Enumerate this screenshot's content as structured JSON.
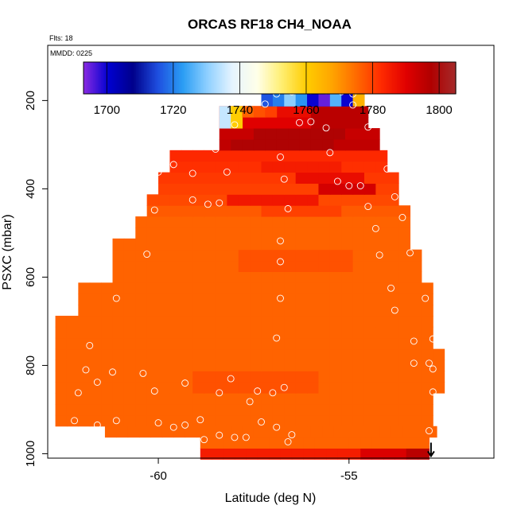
{
  "chart_data": {
    "type": "heatmap",
    "title": "ORCAS RF18 CH4_NOAA",
    "flts_label": "Flts: 18",
    "mmdd_label": "MMDD: 0225",
    "xlabel": "Latitude (deg N)",
    "ylabel": "PSXC (mbar)",
    "xlim": [
      -62.9,
      -51.2
    ],
    "ylim": [
      1010,
      75
    ],
    "y_reversed": true,
    "x_ticks": [
      {
        "value": -60,
        "label": "-60"
      },
      {
        "value": -55,
        "label": "-55"
      }
    ],
    "y_ticks": [
      {
        "value": 200,
        "label": "200"
      },
      {
        "value": 400,
        "label": "400"
      },
      {
        "value": 600,
        "label": "600"
      },
      {
        "value": 800,
        "label": "800"
      },
      {
        "value": 1000,
        "label": "1000"
      }
    ],
    "colorbar": {
      "range": [
        1693,
        1805
      ],
      "ticks": [
        {
          "value": 1700,
          "label": "1700"
        },
        {
          "value": 1720,
          "label": "1720"
        },
        {
          "value": 1740,
          "label": "1740"
        },
        {
          "value": 1760,
          "label": "1760"
        },
        {
          "value": 1780,
          "label": "1780"
        },
        {
          "value": 1800,
          "label": "1800"
        }
      ],
      "colors": [
        "#8a2be2",
        "#0000d0",
        "#00008b",
        "#1e4fe0",
        "#2a9df4",
        "#8fd0ff",
        "#e6f4ff",
        "#ffffe8",
        "#ffee70",
        "#ffcc00",
        "#ffa500",
        "#ff6a00",
        "#ff2a00",
        "#e00000",
        "#b00000",
        "#a52a2a"
      ]
    },
    "bin_width_deg": 0.3,
    "layer_height_mbar": 25,
    "rows": [
      {
        "p": 1000,
        "x0": -58.9,
        "x1": -52.9,
        "v": 1785,
        "hi_from": -55.0,
        "hi_v": 1791,
        "hi2_from": -53.8,
        "hi2_v": 1796
      },
      {
        "p": 975,
        "x0": -58.9,
        "x1": -52.9,
        "v": 1776
      },
      {
        "p": 950,
        "x0": -61.4,
        "x1": -52.9,
        "v": 1776
      },
      {
        "p": 925,
        "x0": -62.7,
        "x1": -52.9,
        "v": 1776
      },
      {
        "p": 900,
        "x0": -62.7,
        "x1": -52.9,
        "v": 1776
      },
      {
        "p": 875,
        "x0": -62.7,
        "x1": -52.9,
        "v": 1776
      },
      {
        "p": 850,
        "x0": -62.7,
        "x1": -52.6,
        "v": 1776,
        "band": [
          -59.3,
          -56.0
        ],
        "band_v": 1778
      },
      {
        "p": 825,
        "x0": -62.7,
        "x1": -52.6,
        "v": 1776,
        "band": [
          -59.3,
          -56.0
        ],
        "band_v": 1778
      },
      {
        "p": 800,
        "x0": -62.7,
        "x1": -52.6,
        "v": 1776
      },
      {
        "p": 775,
        "x0": -62.7,
        "x1": -52.6,
        "v": 1776
      },
      {
        "p": 750,
        "x0": -62.7,
        "x1": -52.9,
        "v": 1776
      },
      {
        "p": 725,
        "x0": -62.7,
        "x1": -52.9,
        "v": 1776
      },
      {
        "p": 700,
        "x0": -62.7,
        "x1": -52.9,
        "v": 1776
      },
      {
        "p": 675,
        "x0": -62.1,
        "x1": -52.9,
        "v": 1776
      },
      {
        "p": 650,
        "x0": -62.1,
        "x1": -52.9,
        "v": 1776
      },
      {
        "p": 625,
        "x0": -62.1,
        "x1": -52.9,
        "v": 1776
      },
      {
        "p": 600,
        "x0": -61.2,
        "x1": -53.2,
        "v": 1776
      },
      {
        "p": 575,
        "x0": -61.2,
        "x1": -53.2,
        "v": 1776,
        "band": [
          -58.1,
          -55.0
        ],
        "band_v": 1778
      },
      {
        "p": 550,
        "x0": -61.2,
        "x1": -53.2,
        "v": 1776,
        "band": [
          -58.1,
          -55.0
        ],
        "band_v": 1778
      },
      {
        "p": 525,
        "x0": -61.2,
        "x1": -53.5,
        "v": 1776
      },
      {
        "p": 500,
        "x0": -60.6,
        "x1": -53.5,
        "v": 1776
      },
      {
        "p": 475,
        "x0": -60.6,
        "x1": -53.5,
        "v": 1776
      },
      {
        "p": 450,
        "x0": -60.3,
        "x1": -53.5,
        "v": 1777,
        "band": [
          -57.6,
          -55.3
        ],
        "band_v": 1780
      },
      {
        "p": 425,
        "x0": -60.3,
        "x1": -53.8,
        "v": 1779,
        "band": [
          -58.4,
          -56.0
        ],
        "band_v": 1786
      },
      {
        "p": 400,
        "x0": -60.0,
        "x1": -53.8,
        "v": 1780,
        "band": [
          -56.0,
          -54.5
        ],
        "band_v": 1792
      },
      {
        "p": 375,
        "x0": -60.0,
        "x1": -53.8,
        "v": 1781,
        "band": [
          -56.6,
          -54.8
        ],
        "band_v": 1788
      },
      {
        "p": 350,
        "x0": -59.7,
        "x1": -54.1,
        "v": 1782,
        "band": [
          -57.5,
          -55.5
        ],
        "band_v": 1785
      },
      {
        "p": 325,
        "x0": -59.7,
        "x1": -54.1,
        "v": 1783
      },
      {
        "p": 300,
        "x0": -58.4,
        "x1": -54.4,
        "v": 1795,
        "band": [
          -58.1,
          -55.6
        ],
        "band_v": 1798
      },
      {
        "p": 275,
        "x0": -58.4,
        "x1": -54.4,
        "v": 1794,
        "band": [
          -57.7,
          -55.3
        ],
        "band_v": 1798
      },
      {
        "p": 250,
        "x0": -58.4,
        "x1": -54.7,
        "v": 1790,
        "band": [
          -56.3,
          -54.8
        ],
        "band_v": 1796
      },
      {
        "p": 225,
        "x0": -58.4,
        "x1": -54.7,
        "v": 1788,
        "band": [
          -56.3,
          -54.8
        ],
        "band_v": 1796
      },
      {
        "p": 200,
        "x0": -57.3,
        "x1": -54.8,
        "v": 1712
      },
      {
        "p": 175,
        "x0": -57.3,
        "x1": -54.8,
        "v": 1712
      }
    ],
    "cells": [
      {
        "lat": -58.4,
        "p": 250,
        "v": 1735
      },
      {
        "lat": -58.1,
        "p": 250,
        "v": 1760
      },
      {
        "lat": -58.4,
        "p": 225,
        "v": 1735
      },
      {
        "lat": -58.1,
        "p": 225,
        "v": 1760
      },
      {
        "lat": -57.8,
        "p": 225,
        "v": 1776
      },
      {
        "lat": -57.5,
        "p": 225,
        "v": 1778
      },
      {
        "lat": -57.2,
        "p": 225,
        "v": 1780
      },
      {
        "lat": -57.3,
        "p": 200,
        "v": 1716
      },
      {
        "lat": -57.0,
        "p": 200,
        "v": 1720
      },
      {
        "lat": -56.7,
        "p": 200,
        "v": 1730
      },
      {
        "lat": -56.4,
        "p": 200,
        "v": 1722
      },
      {
        "lat": -56.1,
        "p": 200,
        "v": 1700
      },
      {
        "lat": -55.8,
        "p": 200,
        "v": 1695
      },
      {
        "lat": -55.5,
        "p": 200,
        "v": 1726
      },
      {
        "lat": -55.2,
        "p": 200,
        "v": 1700
      },
      {
        "lat": -54.9,
        "p": 200,
        "v": 1765
      },
      {
        "lat": -57.3,
        "p": 175,
        "v": 1716
      },
      {
        "lat": -57.0,
        "p": 175,
        "v": 1720
      },
      {
        "lat": -56.7,
        "p": 175,
        "v": 1730
      },
      {
        "lat": -56.4,
        "p": 175,
        "v": 1722
      },
      {
        "lat": -56.1,
        "p": 175,
        "v": 1700
      },
      {
        "lat": -55.8,
        "p": 175,
        "v": 1695
      },
      {
        "lat": -55.5,
        "p": 175,
        "v": 1726
      },
      {
        "lat": -55.2,
        "p": 175,
        "v": 1700
      },
      {
        "lat": -54.9,
        "p": 175,
        "v": 1765
      }
    ],
    "points": [
      {
        "lat": -57.2,
        "p": 208
      },
      {
        "lat": -56.9,
        "p": 185
      },
      {
        "lat": -56.5,
        "p": 180
      },
      {
        "lat": -56.0,
        "p": 178
      },
      {
        "lat": -55.6,
        "p": 178
      },
      {
        "lat": -55.2,
        "p": 180
      },
      {
        "lat": -54.9,
        "p": 210
      },
      {
        "lat": -54.9,
        "p": 185
      },
      {
        "lat": -58.0,
        "p": 255
      },
      {
        "lat": -56.3,
        "p": 250
      },
      {
        "lat": -56.0,
        "p": 248
      },
      {
        "lat": -55.6,
        "p": 262
      },
      {
        "lat": -54.5,
        "p": 260
      },
      {
        "lat": -58.5,
        "p": 310
      },
      {
        "lat": -56.8,
        "p": 328
      },
      {
        "lat": -55.5,
        "p": 318
      },
      {
        "lat": -54.0,
        "p": 355
      },
      {
        "lat": -59.6,
        "p": 345
      },
      {
        "lat": -59.1,
        "p": 365
      },
      {
        "lat": -56.7,
        "p": 378
      },
      {
        "lat": -55.3,
        "p": 383
      },
      {
        "lat": -55.0,
        "p": 393
      },
      {
        "lat": -54.7,
        "p": 393
      },
      {
        "lat": -53.8,
        "p": 418
      },
      {
        "lat": -60.0,
        "p": 362
      },
      {
        "lat": -58.2,
        "p": 362
      },
      {
        "lat": -59.1,
        "p": 425
      },
      {
        "lat": -58.7,
        "p": 435
      },
      {
        "lat": -58.4,
        "p": 432
      },
      {
        "lat": -56.6,
        "p": 445
      },
      {
        "lat": -54.5,
        "p": 440
      },
      {
        "lat": -53.6,
        "p": 465
      },
      {
        "lat": -60.1,
        "p": 448
      },
      {
        "lat": -54.3,
        "p": 490
      },
      {
        "lat": -56.8,
        "p": 518
      },
      {
        "lat": -54.2,
        "p": 550
      },
      {
        "lat": -53.4,
        "p": 545
      },
      {
        "lat": -60.3,
        "p": 548
      },
      {
        "lat": -56.8,
        "p": 565
      },
      {
        "lat": -61.1,
        "p": 648
      },
      {
        "lat": -56.8,
        "p": 648
      },
      {
        "lat": -53.9,
        "p": 625
      },
      {
        "lat": -53.8,
        "p": 675
      },
      {
        "lat": -53.0,
        "p": 648
      },
      {
        "lat": -61.8,
        "p": 755
      },
      {
        "lat": -56.9,
        "p": 738
      },
      {
        "lat": -53.3,
        "p": 745
      },
      {
        "lat": -52.8,
        "p": 740
      },
      {
        "lat": -61.9,
        "p": 810
      },
      {
        "lat": -61.2,
        "p": 815
      },
      {
        "lat": -60.4,
        "p": 818
      },
      {
        "lat": -61.6,
        "p": 838
      },
      {
        "lat": -60.1,
        "p": 858
      },
      {
        "lat": -59.3,
        "p": 840
      },
      {
        "lat": -58.1,
        "p": 830
      },
      {
        "lat": -58.4,
        "p": 862
      },
      {
        "lat": -57.4,
        "p": 858
      },
      {
        "lat": -57.0,
        "p": 862
      },
      {
        "lat": -56.7,
        "p": 850
      },
      {
        "lat": -57.6,
        "p": 882
      },
      {
        "lat": -53.3,
        "p": 795
      },
      {
        "lat": -52.9,
        "p": 795
      },
      {
        "lat": -52.8,
        "p": 808
      },
      {
        "lat": -52.8,
        "p": 860
      },
      {
        "lat": -62.1,
        "p": 862
      },
      {
        "lat": -61.1,
        "p": 925
      },
      {
        "lat": -61.6,
        "p": 935
      },
      {
        "lat": -62.2,
        "p": 925
      },
      {
        "lat": -62.4,
        "p": 948
      },
      {
        "lat": -62.2,
        "p": 950
      },
      {
        "lat": -60.0,
        "p": 930
      },
      {
        "lat": -59.6,
        "p": 940
      },
      {
        "lat": -59.3,
        "p": 935
      },
      {
        "lat": -58.9,
        "p": 923
      },
      {
        "lat": -58.8,
        "p": 968
      },
      {
        "lat": -58.4,
        "p": 958
      },
      {
        "lat": -58.0,
        "p": 963
      },
      {
        "lat": -57.7,
        "p": 963
      },
      {
        "lat": -57.3,
        "p": 928
      },
      {
        "lat": -56.9,
        "p": 940
      },
      {
        "lat": -56.6,
        "p": 973
      },
      {
        "lat": -56.5,
        "p": 957
      },
      {
        "lat": -52.9,
        "p": 948
      },
      {
        "lat": -52.8,
        "p": 980
      }
    ]
  }
}
